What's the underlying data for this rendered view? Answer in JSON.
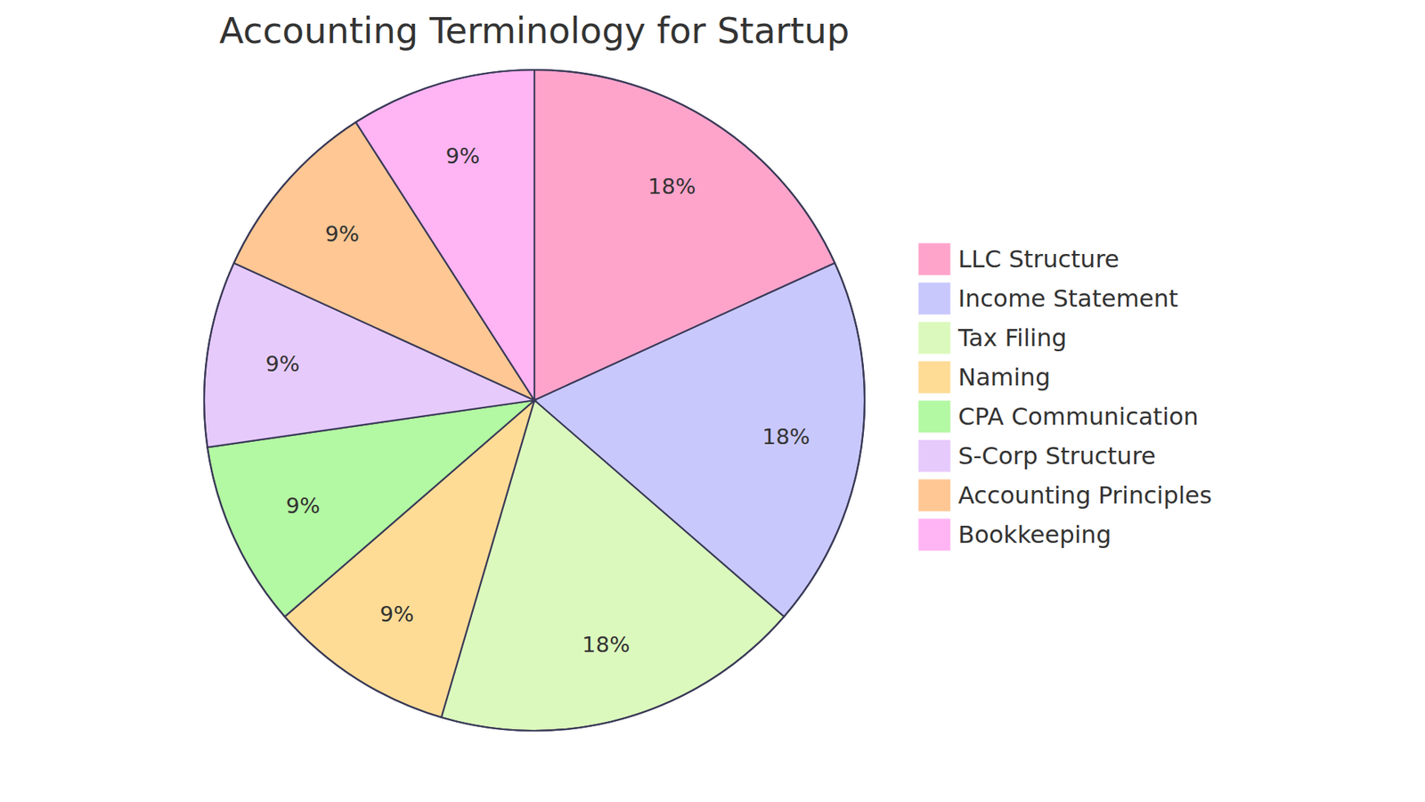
{
  "chart_data": {
    "type": "pie",
    "title": "Accounting Terminology for Startup",
    "categories": [
      "LLC Structure",
      "Income Statement",
      "Tax Filing",
      "Naming",
      "CPA Communication",
      "S-Corp Structure",
      "Accounting Principles",
      "Bookkeeping"
    ],
    "values": [
      18,
      18,
      18,
      9,
      9,
      9,
      9,
      9
    ],
    "value_labels": [
      "18%",
      "18%",
      "18%",
      "9%",
      "9%",
      "9%",
      "9%",
      "9%"
    ],
    "colors": [
      "#fea4cb",
      "#c9c8fd",
      "#dcf9bd",
      "#fedc96",
      "#b3f8a2",
      "#e6cafc",
      "#fec793",
      "#ffb4f4"
    ],
    "data_labels": true,
    "legend": "right"
  }
}
